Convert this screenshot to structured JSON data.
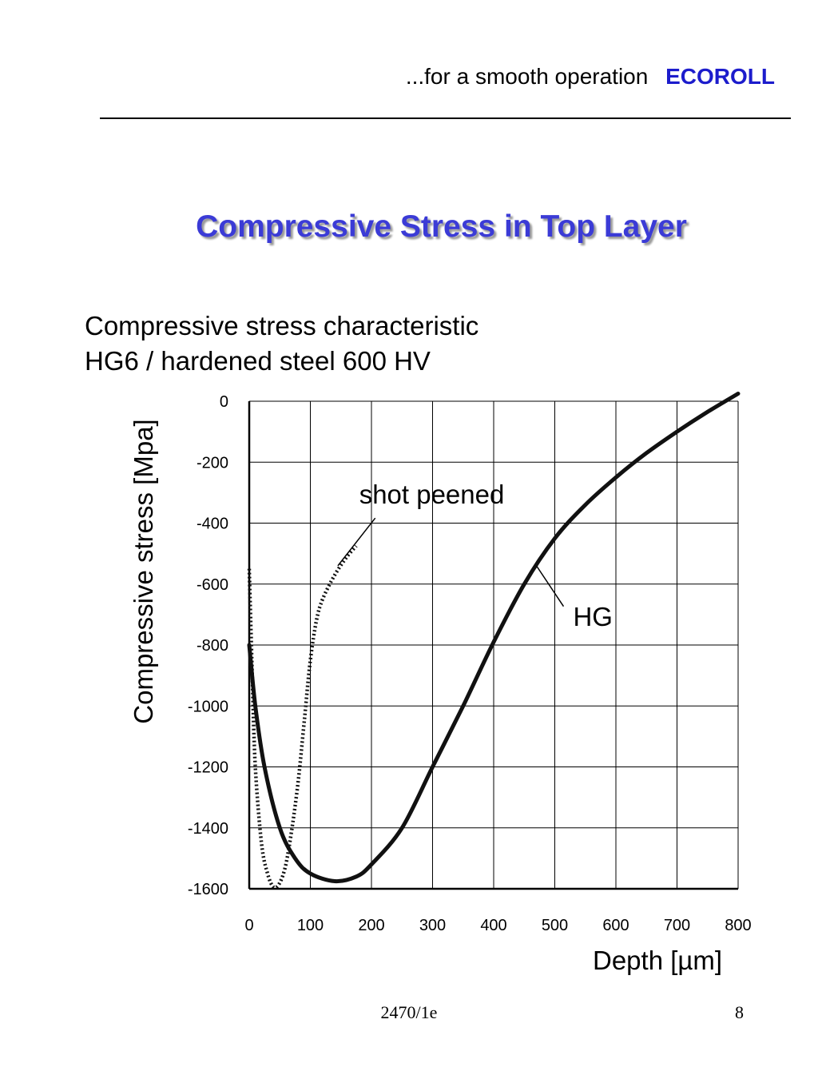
{
  "header": {
    "tagline": "...for a smooth operation",
    "brand": "ECOROLL",
    "brand_color": "#1c1ccc"
  },
  "title": "Compressive Stress in Top Layer",
  "title_color": "#3b3bd6",
  "subtitle": {
    "line1": "Compressive stress characteristic",
    "line2": "HG6 / hardened steel 600 HV"
  },
  "chart_data": {
    "type": "line",
    "ylabel": "Compressive stress [Mpa]",
    "xlabel": "Depth [µm]",
    "xlim": [
      0,
      800
    ],
    "ylim": [
      -1600,
      0
    ],
    "xticks": [
      0,
      100,
      200,
      300,
      400,
      500,
      600,
      700,
      800
    ],
    "yticks": [
      0,
      -200,
      -400,
      -600,
      -800,
      -1000,
      -1200,
      -1400,
      -1600
    ],
    "x_tick_labels": [
      "0",
      "100",
      "200",
      "300",
      "400",
      "500",
      "600",
      "700",
      "800"
    ],
    "y_tick_labels": [
      "0",
      "-200",
      "-400",
      "-600",
      "-800",
      "-1000",
      "-1200",
      "-1400",
      "-1600"
    ],
    "grid": true,
    "series": [
      {
        "name": "HG",
        "style": "solid",
        "points": [
          [
            0,
            -800
          ],
          [
            10,
            -1000
          ],
          [
            25,
            -1200
          ],
          [
            50,
            -1400
          ],
          [
            75,
            -1500
          ],
          [
            100,
            -1550
          ],
          [
            140,
            -1575
          ],
          [
            175,
            -1560
          ],
          [
            200,
            -1520
          ],
          [
            250,
            -1400
          ],
          [
            300,
            -1200
          ],
          [
            350,
            -1000
          ],
          [
            400,
            -790
          ],
          [
            450,
            -600
          ],
          [
            500,
            -450
          ],
          [
            550,
            -340
          ],
          [
            600,
            -250
          ],
          [
            650,
            -170
          ],
          [
            700,
            -100
          ],
          [
            750,
            -35
          ],
          [
            800,
            25
          ]
        ]
      },
      {
        "name": "shot peened",
        "style": "dotted",
        "points": [
          [
            0,
            -550
          ],
          [
            5,
            -900
          ],
          [
            10,
            -1200
          ],
          [
            20,
            -1450
          ],
          [
            30,
            -1550
          ],
          [
            40,
            -1595
          ],
          [
            50,
            -1580
          ],
          [
            60,
            -1520
          ],
          [
            70,
            -1400
          ],
          [
            80,
            -1250
          ],
          [
            90,
            -1050
          ],
          [
            100,
            -850
          ],
          [
            110,
            -720
          ],
          [
            120,
            -650
          ],
          [
            140,
            -570
          ],
          [
            160,
            -510
          ],
          [
            175,
            -475
          ]
        ]
      }
    ],
    "annotations": [
      {
        "text": "shot peened",
        "x": 180,
        "y": -310,
        "target": [
          145,
          -540
        ]
      },
      {
        "text": "HG",
        "x": 530,
        "y": -710,
        "target": [
          470,
          -540
        ]
      }
    ]
  },
  "footer": {
    "code": "2470/1e",
    "page": "8"
  }
}
